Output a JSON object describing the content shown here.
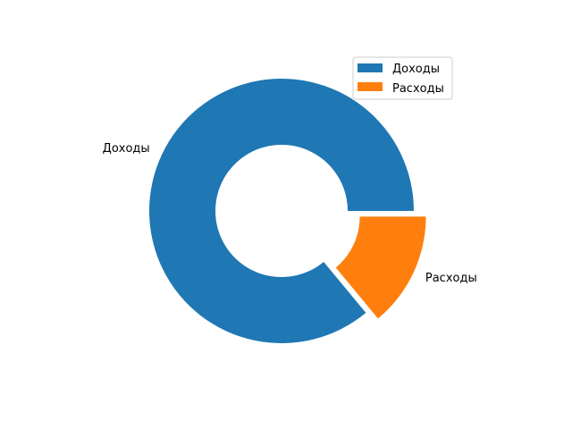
{
  "chart_data": {
    "type": "pie",
    "donut": true,
    "categories": [
      "Доходы",
      "Расходы"
    ],
    "values": [
      86,
      14
    ],
    "colors": [
      "#1f77b4",
      "#ff7f0e"
    ],
    "exploded": [
      false,
      true
    ],
    "title": "",
    "legend": {
      "placement": "top-right",
      "entries": [
        "Доходы",
        "Расходы"
      ]
    }
  }
}
